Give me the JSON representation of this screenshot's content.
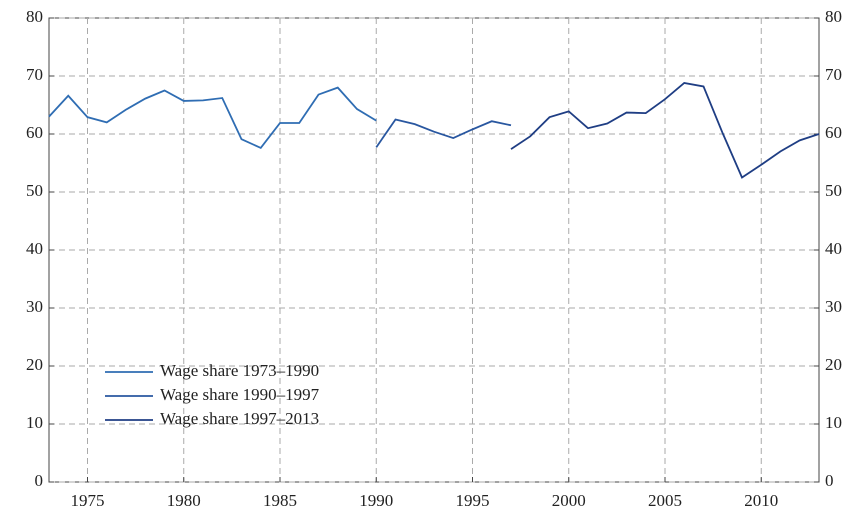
{
  "chart_data": {
    "type": "line",
    "x": [
      1973,
      1974,
      1975,
      1976,
      1977,
      1978,
      1979,
      1980,
      1981,
      1982,
      1983,
      1984,
      1985,
      1986,
      1987,
      1988,
      1989,
      1990,
      1991,
      1992,
      1993,
      1994,
      1995,
      1996,
      1997,
      1998,
      1999,
      2000,
      2001,
      2002,
      2003,
      2004,
      2005,
      2006,
      2007,
      2008,
      2009,
      2010,
      2011,
      2012,
      2013
    ],
    "series": [
      {
        "name": "Wage share 1973–1990",
        "color": "#2f6db3",
        "values": [
          63,
          66.6,
          62.9,
          62,
          64.2,
          66.1,
          67.5,
          65.7,
          65.8,
          66.2,
          59.1,
          57.6,
          61.9,
          61.9,
          66.8,
          68,
          64.3,
          62.3,
          null,
          null,
          null,
          null,
          null,
          null,
          null,
          null,
          null,
          null,
          null,
          null,
          null,
          null,
          null,
          null,
          null,
          null,
          null,
          null,
          null,
          null,
          null
        ]
      },
      {
        "name": "Wage share 1990–1997",
        "color": "#2957a0",
        "values": [
          null,
          null,
          null,
          null,
          null,
          null,
          null,
          null,
          null,
          null,
          null,
          null,
          null,
          null,
          null,
          null,
          null,
          57.7,
          62.5,
          61.7,
          60.4,
          59.3,
          60.8,
          62.2,
          61.5,
          null,
          null,
          null,
          null,
          null,
          null,
          null,
          null,
          null,
          null,
          null,
          null,
          null,
          null,
          null,
          null
        ]
      },
      {
        "name": "Wage share 1997–2013",
        "color": "#1f3e84",
        "values": [
          null,
          null,
          null,
          null,
          null,
          null,
          null,
          null,
          null,
          null,
          null,
          null,
          null,
          null,
          null,
          null,
          null,
          null,
          null,
          null,
          null,
          null,
          null,
          null,
          57.4,
          59.6,
          62.9,
          63.9,
          61,
          61.8,
          63.7,
          63.6,
          66,
          68.8,
          68.2,
          60.1,
          52.5,
          54.7,
          57,
          58.9,
          60
        ]
      }
    ],
    "xlim": [
      1973,
      2013
    ],
    "xticks": [
      1975,
      1980,
      1985,
      1990,
      1995,
      2000,
      2005,
      2010
    ],
    "ylim": [
      0,
      80
    ],
    "yticks": [
      0,
      10,
      20,
      30,
      40,
      50,
      60,
      70,
      80
    ],
    "y2lim": [
      0,
      80
    ],
    "y2ticks": [
      0,
      10,
      20,
      30,
      40,
      50,
      60,
      70,
      80
    ],
    "grid": true,
    "legend": "lower left"
  }
}
